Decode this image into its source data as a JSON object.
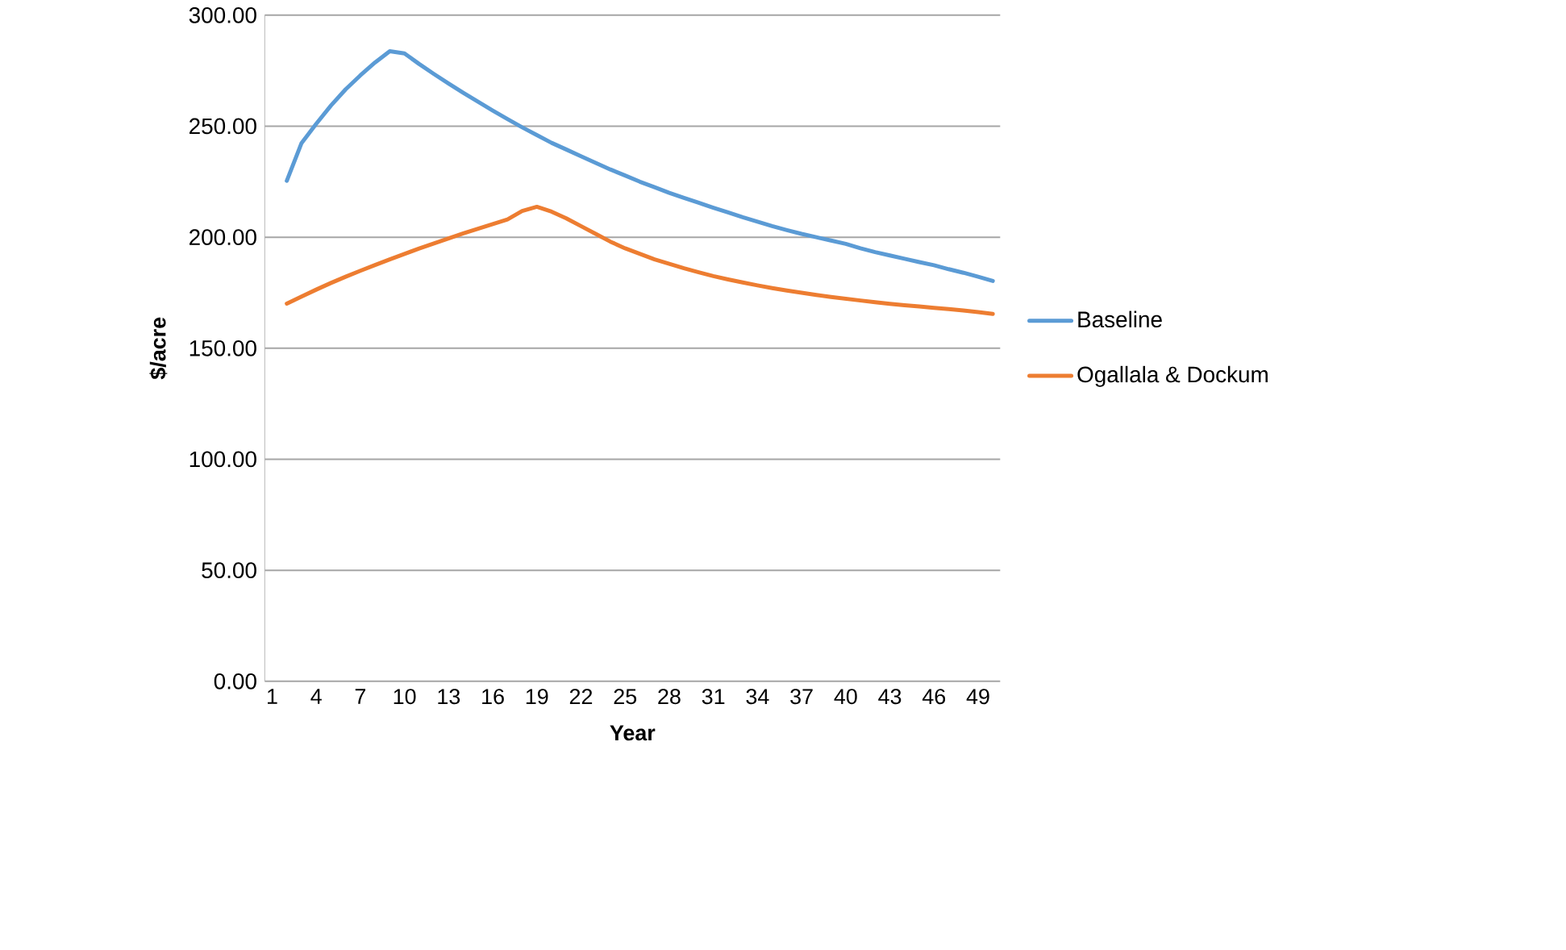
{
  "chart_data": {
    "type": "line",
    "xlabel": "Year",
    "ylabel": "$/acre",
    "categories": [
      "1",
      null,
      null,
      "4",
      null,
      null,
      "7",
      null,
      null,
      "10",
      null,
      null,
      "13",
      null,
      null,
      "16",
      null,
      null,
      "19",
      null,
      null,
      "22",
      null,
      null,
      "25",
      null,
      null,
      "28",
      null,
      null,
      "31",
      null,
      null,
      "34",
      null,
      null,
      "37",
      null,
      null,
      "40",
      null,
      null,
      "43",
      null,
      null,
      "46",
      null,
      null,
      "49",
      null
    ],
    "ylim": [
      0,
      300
    ],
    "yticks": [
      {
        "value": 0,
        "label": "0.00"
      },
      {
        "value": 50,
        "label": "50.00"
      },
      {
        "value": 100,
        "label": "100.00"
      },
      {
        "value": 150,
        "label": "150.00"
      },
      {
        "value": 200,
        "label": "200.00"
      },
      {
        "value": 250,
        "label": "250.00"
      },
      {
        "value": 300,
        "label": "300.00"
      }
    ],
    "grid": "y",
    "legend": "right",
    "line_style": "solid",
    "marker": "none",
    "series": [
      {
        "name": "Baseline",
        "color": "#5b9bd5",
        "values": [
          null,
          225.4,
          242.4,
          251.1,
          259.3,
          266.6,
          272.9,
          278.7,
          283.8,
          282.8,
          278,
          273.5,
          269.2,
          265,
          261,
          257,
          253.2,
          249.5,
          246,
          242.5,
          239.5,
          236.5,
          233.5,
          230.5,
          227.8,
          225,
          222.5,
          220,
          217.7,
          215.5,
          213.3,
          211.2,
          209,
          207,
          205,
          203.2,
          201.5,
          200,
          198.5,
          197,
          195,
          193.3,
          191.8,
          190.3,
          188.8,
          187.4,
          185.6,
          184,
          182.2,
          180.3
        ]
      },
      {
        "name": "Ogallala & Dockum",
        "color": "#ed7d31",
        "values": [
          null,
          170.1,
          173.3,
          176.4,
          179.4,
          182.2,
          184.9,
          187.5,
          190,
          192.5,
          194.9,
          197.2,
          199.5,
          201.7,
          203.8,
          205.9,
          208,
          211.8,
          213.7,
          211.5,
          208.5,
          205,
          201.5,
          198,
          195,
          192.5,
          190,
          188,
          186,
          184.2,
          182.5,
          181,
          179.6,
          178.3,
          177.1,
          176,
          175,
          174,
          173.1,
          172.3,
          171.5,
          170.7,
          170,
          169.4,
          168.8,
          168.2,
          167.6,
          167,
          166.3,
          165.5
        ]
      }
    ]
  }
}
